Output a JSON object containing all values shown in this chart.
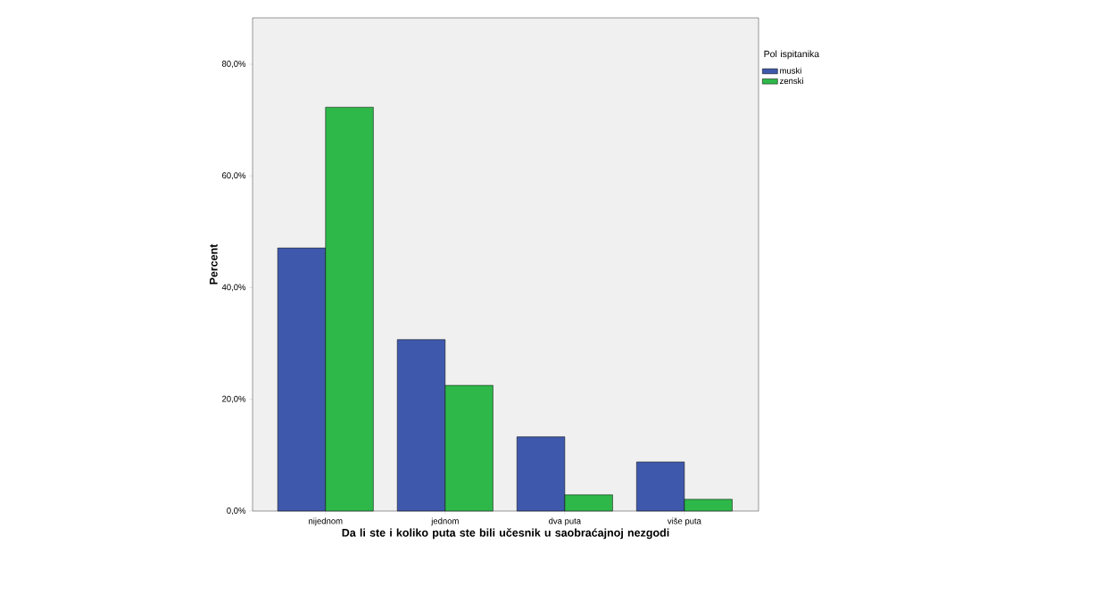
{
  "chart_data": {
    "type": "bar",
    "xlabel": "Da li ste i koliko puta ste bili učesnik u saobraćajnoj nezgodi",
    "ylabel": "Percent",
    "legend_title": "Pol ispitanika",
    "categories": [
      "nijednom",
      "jednom",
      "dva puta",
      "više puta"
    ],
    "series": [
      {
        "name": "muski",
        "color": "#3e58ac",
        "values": [
          47.1,
          30.7,
          13.3,
          8.8
        ]
      },
      {
        "name": "zenski",
        "color": "#2eb84a",
        "values": [
          72.3,
          22.5,
          2.9,
          2.1
        ]
      }
    ],
    "ylim": [
      0,
      88.3
    ],
    "yticks": [
      {
        "value": 0,
        "label": "0,0%"
      },
      {
        "value": 20,
        "label": "20,0%"
      },
      {
        "value": 40,
        "label": "40,0%"
      },
      {
        "value": 60,
        "label": "60,0%"
      },
      {
        "value": 80,
        "label": "80,0%"
      }
    ],
    "legend": "right"
  }
}
